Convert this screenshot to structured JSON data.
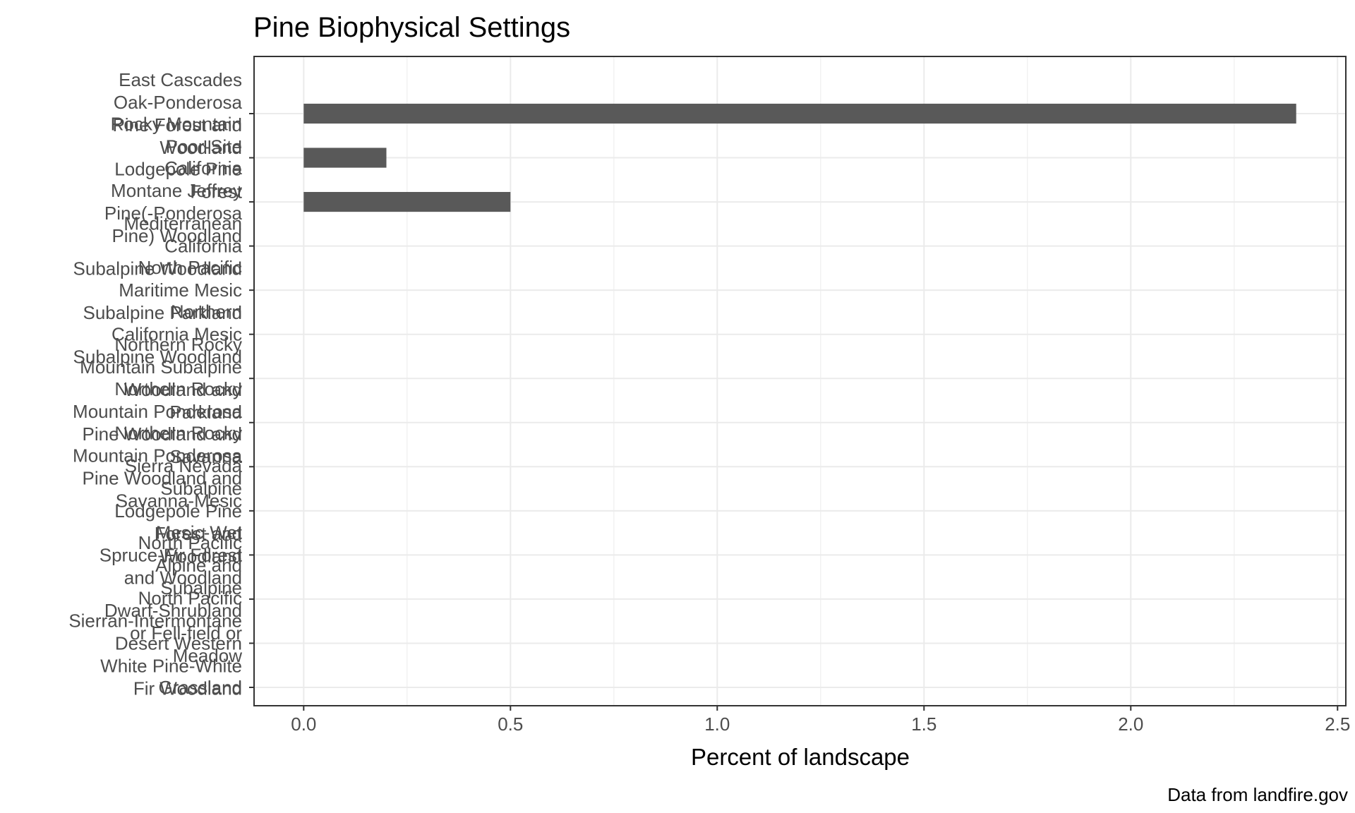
{
  "chart_data": {
    "type": "bar",
    "orientation": "horizontal",
    "title": "Pine Biophysical Settings",
    "xlabel": "Percent of landscape",
    "ylabel": "",
    "caption": "Data from landfire.gov",
    "xlim": [
      -0.12,
      2.52
    ],
    "xticks": [
      0.0,
      0.5,
      1.0,
      1.5,
      2.0,
      2.5
    ],
    "xtick_labels": [
      "0.0",
      "0.5",
      "1.0",
      "1.5",
      "2.0",
      "2.5"
    ],
    "grid": true,
    "theme": "bw",
    "bar_color": "#595959",
    "categories": [
      {
        "lines": [
          "East Cascades",
          "Oak-Ponderosa",
          "Pine Forest and",
          "Woodland"
        ],
        "value": 2.4
      },
      {
        "lines": [
          "Rocky Mountain",
          "Poor-Site",
          "Lodgepole Pine",
          "Forest"
        ],
        "value": 0.2
      },
      {
        "lines": [
          "California",
          "Montane Jeffrey",
          "Pine(-Ponderosa",
          "Pine) Woodland"
        ],
        "value": 0.5
      },
      {
        "lines": [
          "Mediterranean",
          "California",
          "Subalpine Woodland"
        ],
        "value": 0
      },
      {
        "lines": [
          "North Pacific",
          "Maritime Mesic",
          "Subalpine Parkland"
        ],
        "value": 0
      },
      {
        "lines": [
          "Northern",
          "California Mesic",
          "Subalpine Woodland"
        ],
        "value": 0
      },
      {
        "lines": [
          "Northern Rocky",
          "Mountain Subalpine",
          "Woodland and",
          "Parkland"
        ],
        "value": 0
      },
      {
        "lines": [
          "Northern Rocky",
          "Mountain Ponderosa",
          "Pine Woodland and",
          "Savanna"
        ],
        "value": 0
      },
      {
        "lines": [
          "Northern Rocky",
          "Mountain Ponderosa",
          "Pine Woodland and",
          "Savanna-Mesic"
        ],
        "value": 0
      },
      {
        "lines": [
          "Sierra Nevada",
          "Subalpine",
          "Lodgepole Pine",
          "Forest and",
          "Woodland"
        ],
        "value": 0
      },
      {
        "lines": [
          "Mesic-Wet",
          "Spruce-Fir Forest",
          "and Woodland"
        ],
        "value": 0
      },
      {
        "lines": [
          "North Pacific",
          "Alpine and",
          "Subalpine",
          "Dwarf-Shrubland",
          "or Fell-field or",
          "Meadow"
        ],
        "value": 0
      },
      {
        "lines": [
          "North Pacific",
          "Sierran-Intermontane",
          "Desert Western",
          "White Pine-White",
          "Fir Woodland"
        ],
        "value": 0
      },
      {
        "lines": [
          "Grassland"
        ],
        "value": 0
      }
    ]
  }
}
